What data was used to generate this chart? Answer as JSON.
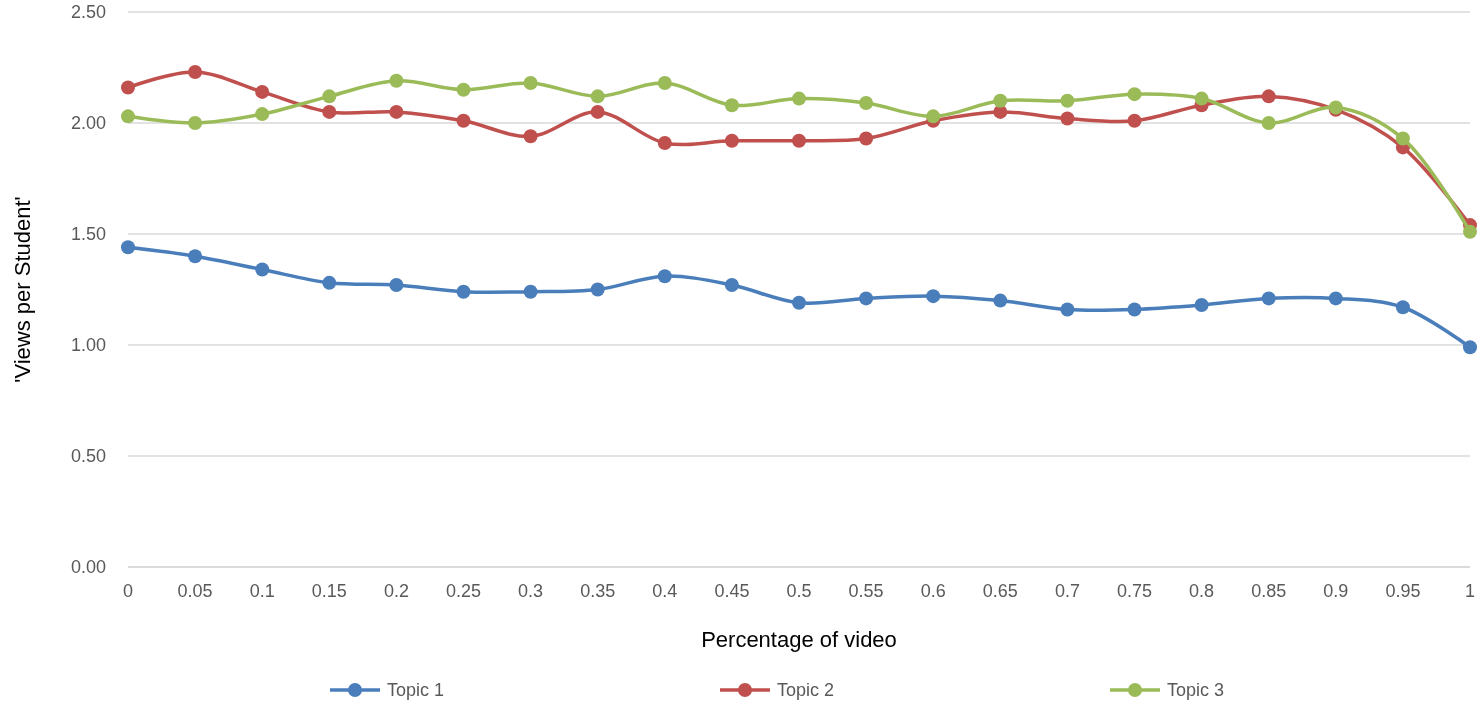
{
  "chart_data": {
    "type": "line",
    "xlabel": "Percentage of video",
    "ylabel": "'Views per Student'",
    "categories": [
      "0",
      "0.05",
      "0.1",
      "0.15",
      "0.2",
      "0.25",
      "0.3",
      "0.35",
      "0.4",
      "0.45",
      "0.5",
      "0.55",
      "0.6",
      "0.65",
      "0.7",
      "0.75",
      "0.8",
      "0.85",
      "0.9",
      "0.95",
      "1"
    ],
    "series": [
      {
        "name": "Topic 1",
        "color": "#4a7ebb",
        "values": [
          1.44,
          1.4,
          1.34,
          1.28,
          1.27,
          1.24,
          1.24,
          1.25,
          1.31,
          1.27,
          1.19,
          1.21,
          1.22,
          1.2,
          1.16,
          1.16,
          1.18,
          1.21,
          1.21,
          1.17,
          0.99
        ]
      },
      {
        "name": "Topic 2",
        "color": "#c0504d",
        "values": [
          2.16,
          2.23,
          2.14,
          2.05,
          2.05,
          2.01,
          1.94,
          2.05,
          1.91,
          1.92,
          1.92,
          1.93,
          2.01,
          2.05,
          2.02,
          2.01,
          2.08,
          2.12,
          2.06,
          1.89,
          1.54
        ]
      },
      {
        "name": "Topic 3",
        "color": "#9bbb59",
        "values": [
          2.03,
          2.0,
          2.04,
          2.12,
          2.19,
          2.15,
          2.18,
          2.12,
          2.18,
          2.08,
          2.11,
          2.09,
          2.03,
          2.1,
          2.1,
          2.13,
          2.11,
          2.0,
          2.07,
          1.93,
          1.51
        ]
      }
    ],
    "ylim": [
      0,
      2.5
    ],
    "yticks": [
      {
        "value": 0,
        "label": "0.00"
      },
      {
        "value": 0.5,
        "label": "0.50"
      },
      {
        "value": 1,
        "label": "1.00"
      },
      {
        "value": 1.5,
        "label": "1.50"
      },
      {
        "value": 2,
        "label": "2.00"
      },
      {
        "value": 2.5,
        "label": "2.50"
      }
    ],
    "grid": "y",
    "legend": "bottom",
    "marker": "circle",
    "line_style": "solid"
  }
}
